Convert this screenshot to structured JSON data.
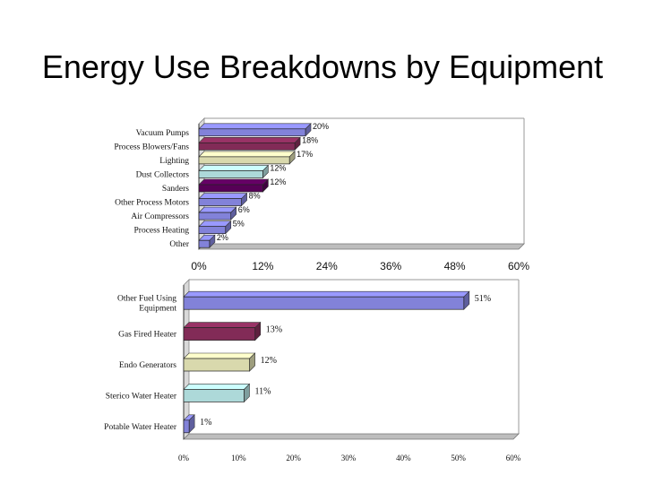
{
  "slide": {
    "title": "Energy Use Breakdowns by Equipment"
  },
  "chart_data": [
    {
      "type": "bar",
      "orientation": "horizontal",
      "categories": [
        "Vacuum Pumps",
        "Process Blowers/Fans",
        "Lighting",
        "Dust Collectors",
        "Sanders",
        "Other Process Motors",
        "Air Compressors",
        "Process Heating",
        "Other"
      ],
      "values": [
        20,
        18,
        17,
        12,
        12,
        8,
        6,
        5,
        2
      ],
      "data_labels": [
        "20%",
        "18%",
        "17%",
        "12%",
        "12%",
        "8%",
        "6%",
        "5%",
        "2%"
      ],
      "colors": [
        "#9999ff",
        "#993366",
        "#ffffcc",
        "#ccffff",
        "#660066",
        "#9999ff",
        "#9999ff",
        "#9999ff",
        "#9999ff"
      ],
      "xlim": [
        0,
        60
      ],
      "xticks": [
        "0%",
        "12%",
        "24%",
        "36%",
        "48%",
        "60%"
      ],
      "grid": false,
      "style": "3d"
    },
    {
      "type": "bar",
      "orientation": "horizontal",
      "categories": [
        "Other Fuel Using Equipment",
        "Gas Fired Heater",
        "Endo Generators",
        "Sterico Water Heater",
        "Potable Water Heater"
      ],
      "values": [
        51,
        13,
        12,
        11,
        1
      ],
      "data_labels": [
        "51%",
        "13%",
        "12%",
        "11%",
        "1%"
      ],
      "colors": [
        "#9999ff",
        "#993366",
        "#ffffcc",
        "#ccffff",
        "#9999ff"
      ],
      "xlim": [
        0,
        60
      ],
      "xticks": [
        "0%",
        "10%",
        "20%",
        "30%",
        "40%",
        "50%",
        "60%"
      ],
      "grid": false,
      "style": "3d"
    }
  ]
}
